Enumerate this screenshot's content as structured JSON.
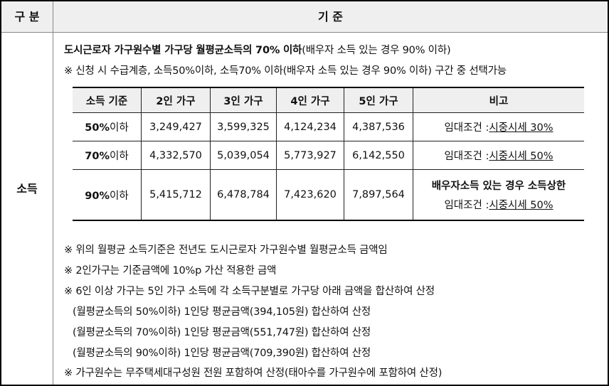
{
  "header": {
    "col1": "구 분",
    "col2": "기 준"
  },
  "category": "소득",
  "intro": {
    "line1_bold": "도시근로자 가구원수별 가구당 월평균소득의 70% 이하",
    "line1_rest": "(배우자 소득 있는 경우 90% 이하)",
    "line2": "※ 신청 시 수급계층, 소득50%이하, 소득70% 이하(배우자 소득 있는 경우 90% 이하) 구간 중 선택가능"
  },
  "table": {
    "headers": [
      "소득 기준",
      "2인 가구",
      "3인 가구",
      "4인 가구",
      "5인 가구",
      "비고"
    ],
    "rows": [
      {
        "pct": "50%",
        "suffix": "이하",
        "values": [
          "3,249,427",
          "3,599,325",
          "4,124,234",
          "4,387,536"
        ],
        "note_bold": "",
        "note_label": "임대조건 : ",
        "note_link": "시중시세 30%"
      },
      {
        "pct": "70%",
        "suffix": "이하",
        "values": [
          "4,332,570",
          "5,039,054",
          "5,773,927",
          "6,142,550"
        ],
        "note_bold": "",
        "note_label": "임대조건 : ",
        "note_link": "시중시세 50%"
      },
      {
        "pct": "90%",
        "suffix": "이하",
        "values": [
          "5,415,712",
          "6,478,784",
          "7,423,620",
          "7,897,564"
        ],
        "note_bold": "배우자소득 있는 경우 소득상한",
        "note_label": "임대조건 : ",
        "note_link": "시중시세 50%"
      }
    ]
  },
  "notes": [
    "※ 위의 월평균 소득기준은 전년도 도시근로자 가구원수별 월평균소득 금액임",
    "※ 2인가구는 기준금액에 10%p 가산 적용한 금액",
    "※ 6인 이상 가구는 5인 가구 소득에 각 소득구분별로 가구당 아래 금액을 합산하여 산정",
    "   (월평균소득의 50%이하) 1인당 평균금액(394,105원) 합산하여 산정",
    "   (월평균소득의 70%이하) 1인당 평균금액(551,747원) 합산하여 산정",
    "   (월평균소득의 90%이하) 1인당 평균금액(709,390원) 합산하여 산정",
    "※ 가구원수는 무주택세대구성원 전원 포함하여 산정(태아수를 가구원수에 포함하여 산정)"
  ]
}
